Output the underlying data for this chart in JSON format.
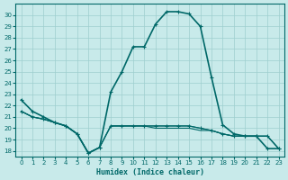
{
  "xlabel": "Humidex (Indice chaleur)",
  "bg_color": "#c8eaea",
  "grid_color": "#9ecece",
  "line_color": "#006868",
  "xlim": [
    -0.5,
    23.5
  ],
  "ylim": [
    17.5,
    31.0
  ],
  "xticks": [
    0,
    1,
    2,
    3,
    4,
    5,
    6,
    7,
    8,
    9,
    10,
    11,
    12,
    13,
    14,
    15,
    16,
    17,
    18,
    19,
    20,
    21,
    22,
    23
  ],
  "yticks": [
    18,
    19,
    20,
    21,
    22,
    23,
    24,
    25,
    26,
    27,
    28,
    29,
    30
  ],
  "series": [
    {
      "y": [
        22.5,
        21.5,
        21.0,
        20.5,
        20.2,
        19.5,
        17.8,
        18.3,
        23.2,
        25.0,
        27.2,
        27.2,
        29.2,
        30.3,
        30.3,
        30.1,
        29.0,
        24.5,
        20.3,
        19.5,
        19.3,
        19.3,
        18.2,
        18.2
      ],
      "lw": 1.2,
      "marker": true
    },
    {
      "y": [
        21.5,
        21.0,
        20.8,
        20.5,
        20.2,
        19.5,
        17.8,
        18.3,
        20.2,
        20.2,
        20.2,
        20.2,
        20.2,
        20.2,
        20.2,
        20.2,
        20.0,
        19.8,
        19.5,
        19.3,
        19.3,
        19.3,
        19.3,
        18.2
      ],
      "lw": 0.8,
      "marker": true
    },
    {
      "y": [
        21.5,
        21.0,
        20.8,
        20.5,
        20.2,
        19.5,
        17.8,
        18.3,
        20.2,
        20.2,
        20.2,
        20.2,
        20.2,
        20.2,
        20.2,
        20.2,
        20.0,
        19.8,
        19.5,
        19.3,
        19.3,
        19.3,
        19.3,
        18.2
      ],
      "lw": 0.8,
      "marker": false
    },
    {
      "y": [
        21.5,
        21.0,
        20.8,
        20.5,
        20.2,
        19.5,
        17.8,
        18.3,
        20.2,
        20.2,
        20.2,
        20.2,
        20.0,
        20.0,
        20.0,
        20.0,
        19.8,
        19.8,
        19.5,
        19.3,
        19.3,
        19.3,
        19.3,
        18.2
      ],
      "lw": 0.8,
      "marker": false
    }
  ]
}
